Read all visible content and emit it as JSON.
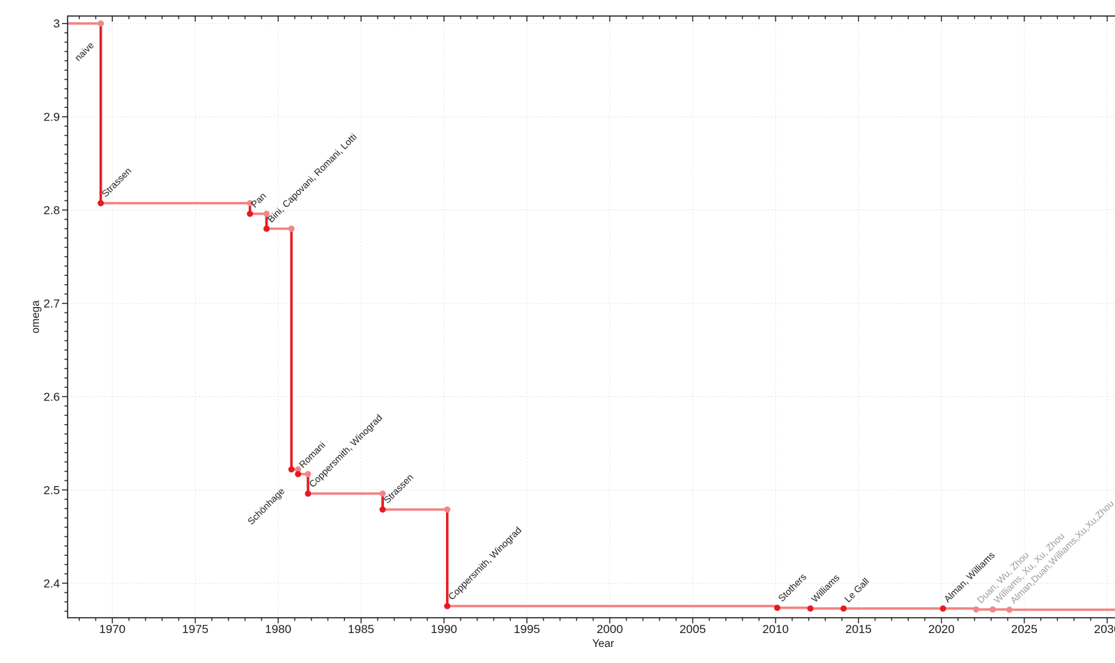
{
  "chart_data": {
    "type": "line",
    "subtype": "step-post",
    "title": "",
    "xlabel": "Year",
    "ylabel": "omega",
    "xlim": [
      1967.3,
      2031.9
    ],
    "ylim": [
      2.363,
      3.008
    ],
    "xticks": [
      1970,
      1975,
      1980,
      1985,
      1990,
      1995,
      2000,
      2005,
      2010,
      2015,
      2020,
      2025,
      2030
    ],
    "yticks": [
      2.4,
      2.5,
      2.6,
      2.7,
      2.8,
      2.9,
      3.0
    ],
    "ytick_labels": [
      "2.4",
      "2.5",
      "2.6",
      "2.7",
      "2.8",
      "2.9",
      "3"
    ],
    "minor_x_step": 1,
    "minor_y_step": 0.01,
    "grid": true,
    "legend": "none",
    "start": {
      "year": 1967.3,
      "omega": 3.0
    },
    "initial_label": {
      "text": "naive",
      "year": 1969.3,
      "omega": 3.0,
      "placement": "below",
      "muted": false
    },
    "events": [
      {
        "label": "Strassen",
        "year": 1969.3,
        "omega": 2.8074,
        "placement": "above",
        "muted": false
      },
      {
        "label": "Pan",
        "year": 1978.3,
        "omega": 2.796,
        "placement": "above",
        "muted": false
      },
      {
        "label": "Bini, Capovani, Romani, Lotti",
        "year": 1979.3,
        "omega": 2.78,
        "placement": "above",
        "muted": false
      },
      {
        "label": "Schönhage",
        "year": 1980.8,
        "omega": 2.522,
        "placement": "below",
        "muted": false
      },
      {
        "label": "Romani",
        "year": 1981.2,
        "omega": 2.517,
        "placement": "above",
        "muted": false
      },
      {
        "label": "Coppersmith, Winograd",
        "year": 1981.8,
        "omega": 2.496,
        "placement": "above",
        "muted": false
      },
      {
        "label": "Strassen",
        "year": 1986.3,
        "omega": 2.479,
        "placement": "above",
        "muted": false
      },
      {
        "label": "Coppersmith, Winograd",
        "year": 1990.2,
        "omega": 2.3755,
        "placement": "above",
        "muted": false
      },
      {
        "label": "Stothers",
        "year": 2010.1,
        "omega": 2.3737,
        "placement": "above",
        "muted": false
      },
      {
        "label": "Williams",
        "year": 2012.1,
        "omega": 2.3729,
        "placement": "above",
        "muted": false
      },
      {
        "label": "Le Gall",
        "year": 2014.1,
        "omega": 2.3728639,
        "placement": "above",
        "muted": false
      },
      {
        "label": "Alman, Williams",
        "year": 2020.1,
        "omega": 2.3728596,
        "placement": "above",
        "muted": false
      },
      {
        "label": "Duan, Wu, Zhou",
        "year": 2022.1,
        "omega": 2.37188,
        "placement": "above",
        "muted": true
      },
      {
        "label": "Williams, Xu, Xu, Zhou",
        "year": 2023.1,
        "omega": 2.371866,
        "placement": "above",
        "muted": true
      },
      {
        "label": "Alman,Duan,Williams,Xu,Xu,Zhou",
        "year": 2024.1,
        "omega": 2.371552,
        "placement": "above",
        "muted": true
      }
    ],
    "colors": {
      "line": "#f28383",
      "drop": "#e81a20",
      "point": "#e81a20",
      "point_light": "#f08787",
      "label": "#1c1c1c",
      "label_muted": "#9c9c9c",
      "grid": "#dcdcdc",
      "axis": "#1f1f1f",
      "background": "#ffffff"
    }
  }
}
